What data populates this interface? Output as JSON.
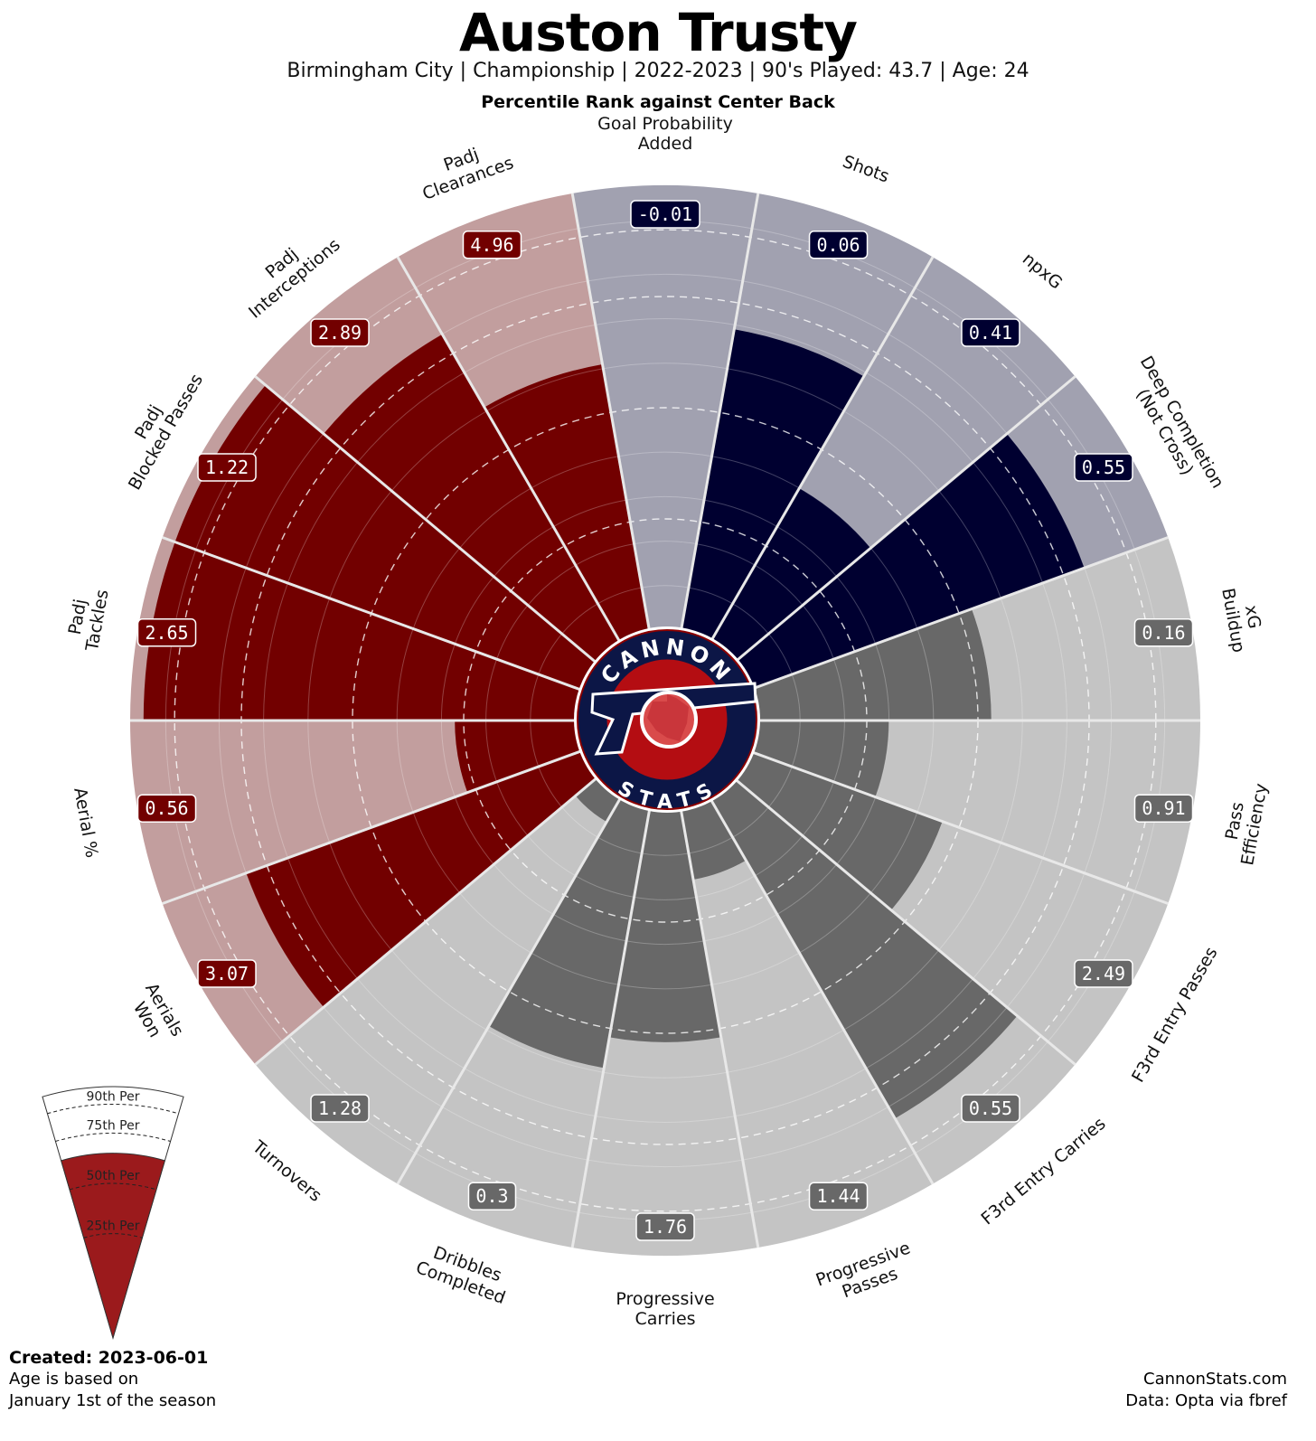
{
  "header": {
    "title": "Auston Trusty",
    "subtitle": "Birmingham City  | Championship | 2022-2023 | 90's Played: 43.7 | Age: 24",
    "subtitle2": "Percentile Rank against Center Back"
  },
  "logo": {
    "top_text": "CANNON",
    "bottom_text": "STATS"
  },
  "legend": {
    "labels": [
      "90th Per",
      "75th Per",
      "50th Per",
      "25th Per"
    ],
    "fill_color": "#9b1a1c"
  },
  "footer": {
    "created": "Created: 2023-06-01",
    "age_note_1": "Age is based on",
    "age_note_2": "January 1st of the season",
    "site": "CannonStats.com",
    "source": "Data: Opta via fbref"
  },
  "colors": {
    "defense_bg": "#c29e9e",
    "defense_fill": "#720000",
    "defense_label": "#720000",
    "attack_bg": "#a1a1b0",
    "attack_fill": "#000030",
    "attack_label": "#000030",
    "possession_bg": "#c4c4c4",
    "possession_fill": "#686868",
    "possession_label": "#686868"
  },
  "chart_data": {
    "type": "polar-bar",
    "title": "Auston Trusty",
    "subtitle": "Percentile Rank against Center Back",
    "rlim": [
      0,
      100
    ],
    "rings": [
      25,
      50,
      75,
      90
    ],
    "series": [
      {
        "label": "Goal Probability Added",
        "lines": [
          "Goal Probability",
          "Added"
        ],
        "value": "-0.01",
        "percentile": 0,
        "group": "attack"
      },
      {
        "label": "Shots",
        "lines": [
          "Shots"
        ],
        "value": "0.06",
        "percentile": 69,
        "group": "attack"
      },
      {
        "label": "npxG",
        "lines": [
          "npxG"
        ],
        "value": "0.41",
        "percentile": 40,
        "group": "attack"
      },
      {
        "label": "Deep Completion (Not Cross)",
        "lines": [
          "Deep Completion",
          "(Not Cross)"
        ],
        "value": "0.55",
        "percentile": 80,
        "group": "attack"
      },
      {
        "label": "xG Buildup",
        "lines": [
          "xG",
          "Buildup"
        ],
        "value": "0.16",
        "percentile": 53,
        "group": "possession"
      },
      {
        "label": "Pass Efficiency",
        "lines": [
          "Pass",
          "Efficiency"
        ],
        "value": "0.91",
        "percentile": 30,
        "group": "possession"
      },
      {
        "label": "F3rd Entry Passes",
        "lines": [
          "F3rd Entry Passes"
        ],
        "value": "2.49",
        "percentile": 46,
        "group": "possession"
      },
      {
        "label": "F3rd Entry Carries",
        "lines": [
          "F3rd Entry Carries"
        ],
        "value": "0.55",
        "percentile": 83,
        "group": "possession"
      },
      {
        "label": "Progressive Passes",
        "lines": [
          "Progressive",
          "Passes"
        ],
        "value": "1.44",
        "percentile": 16,
        "group": "possession"
      },
      {
        "label": "Progressive Carries",
        "lines": [
          "Progressive",
          "Carries"
        ],
        "value": "1.76",
        "percentile": 52,
        "group": "possession"
      },
      {
        "label": "Dribbles Completed",
        "lines": [
          "Dribbles",
          "Completed"
        ],
        "value": "0.3",
        "percentile": 59,
        "group": "possession"
      },
      {
        "label": "Turnovers",
        "lines": [
          "Turnovers"
        ],
        "value": "1.28",
        "percentile": 6,
        "group": "possession"
      },
      {
        "label": "Aerials Won",
        "lines": [
          "Aerials",
          "Won"
        ],
        "value": "3.07",
        "percentile": 80,
        "group": "defense"
      },
      {
        "label": "Aerial %",
        "lines": [
          "Aerial %"
        ],
        "value": "0.56",
        "percentile": 27,
        "group": "defense"
      },
      {
        "label": "Padj Tackles",
        "lines": [
          "Padj",
          "Tackles"
        ],
        "value": "2.65",
        "percentile": 97,
        "group": "defense"
      },
      {
        "label": "Padj Blocked Passes",
        "lines": [
          "Padj",
          "Blocked Passes"
        ],
        "value": "1.22",
        "percentile": 97,
        "group": "defense"
      },
      {
        "label": "Padj Interceptions",
        "lines": [
          "Padj",
          "Interceptions"
        ],
        "value": "2.89",
        "percentile": 80,
        "group": "defense"
      },
      {
        "label": "Padj Clearances",
        "lines": [
          "Padj",
          "Clearances"
        ],
        "value": "4.96",
        "percentile": 61,
        "group": "defense"
      }
    ]
  }
}
